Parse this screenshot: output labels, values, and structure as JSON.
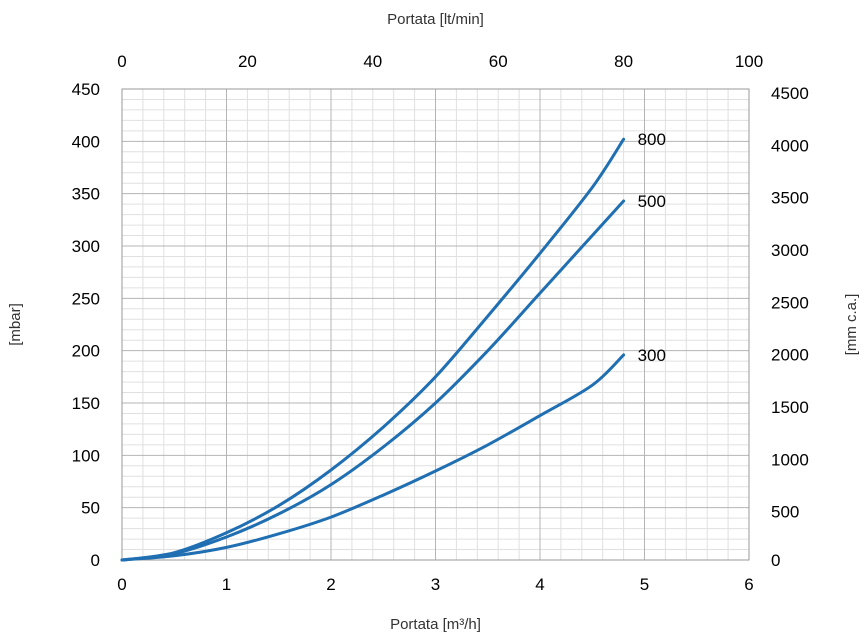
{
  "chart_data": {
    "type": "line",
    "xlabel": "Portata [m³/h]",
    "ylabel": "[mbar]",
    "x2label": "Portata [lt/min]",
    "y2label": "[mm c.a.]",
    "xlim": [
      0,
      6
    ],
    "ylim": [
      0,
      450
    ],
    "x2lim": [
      0,
      100
    ],
    "y2lim": [
      0,
      4500
    ],
    "xticks": [
      "0",
      "1",
      "2",
      "3",
      "4",
      "5",
      "6"
    ],
    "yticks": [
      "0",
      "50",
      "100",
      "150",
      "200",
      "250",
      "300",
      "350",
      "400",
      "450"
    ],
    "x2ticks": [
      "0",
      "20",
      "40",
      "60",
      "80",
      "100"
    ],
    "y2ticks": [
      "0",
      "500",
      "1000",
      "1500",
      "2000",
      "2500",
      "3000",
      "3500",
      "4000",
      "4500"
    ],
    "grid": true,
    "line_color": "#1f6fb2",
    "series": [
      {
        "label": "300",
        "x": [
          0,
          0.5,
          1,
          1.5,
          2,
          2.5,
          3,
          3.5,
          4,
          4.5,
          4.8
        ],
        "y": [
          0,
          4,
          12,
          25,
          41,
          62,
          85,
          110,
          138,
          167,
          196
        ]
      },
      {
        "label": "500",
        "x": [
          0,
          0.5,
          1,
          1.5,
          2,
          2.5,
          3,
          3.5,
          4,
          4.5,
          4.8
        ],
        "y": [
          0,
          6,
          22,
          44,
          72,
          108,
          150,
          200,
          255,
          310,
          343
        ]
      },
      {
        "label": "800",
        "x": [
          0,
          0.5,
          1,
          1.5,
          2,
          2.5,
          3,
          3.5,
          4,
          4.5,
          4.8
        ],
        "y": [
          0,
          7,
          26,
          52,
          86,
          127,
          175,
          233,
          293,
          356,
          402
        ]
      }
    ]
  }
}
